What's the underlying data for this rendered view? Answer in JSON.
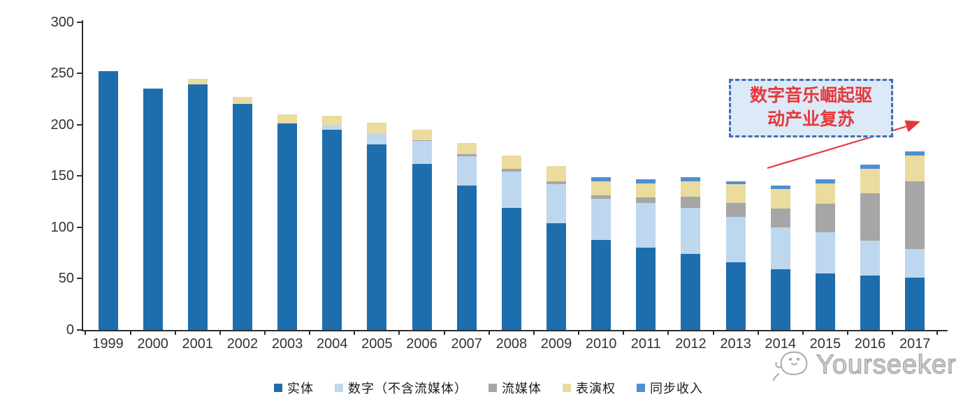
{
  "chart_data": {
    "type": "bar",
    "stacked": true,
    "title": "",
    "xlabel": "",
    "ylabel": "",
    "categories": [
      "1999",
      "2000",
      "2001",
      "2002",
      "2003",
      "2004",
      "2005",
      "2006",
      "2007",
      "2008",
      "2009",
      "2010",
      "2011",
      "2012",
      "2013",
      "2014",
      "2015",
      "2016",
      "2017"
    ],
    "series": [
      {
        "name": "实体",
        "color": "#1E6DAD",
        "values": [
          252,
          235,
          239,
          220,
          201,
          195,
          181,
          162,
          141,
          119,
          104,
          88,
          80,
          74,
          66,
          59,
          55,
          53,
          51
        ]
      },
      {
        "name": "数字（不含流媒体）",
        "color": "#BDD7EE",
        "values": [
          0,
          0,
          0,
          0,
          0,
          4,
          11,
          22,
          28,
          35,
          38,
          40,
          44,
          45,
          44,
          41,
          40,
          34,
          28
        ]
      },
      {
        "name": "流媒体",
        "color": "#A6A6A6",
        "values": [
          0,
          0,
          0,
          0,
          0,
          0,
          0,
          1,
          2,
          3,
          3,
          3,
          5,
          11,
          14,
          18,
          28,
          46,
          66
        ]
      },
      {
        "name": "表演权",
        "color": "#EADB9E",
        "values": [
          0,
          0,
          6,
          7,
          9,
          10,
          10,
          10,
          11,
          13,
          15,
          14,
          14,
          15,
          18,
          19,
          20,
          24,
          25
        ]
      },
      {
        "name": "同步收入",
        "color": "#4E90D1",
        "values": [
          0,
          0,
          0,
          0,
          0,
          0,
          0,
          0,
          0,
          0,
          0,
          4,
          4,
          4,
          3,
          4,
          4,
          4,
          4
        ]
      }
    ],
    "ylim": [
      0,
      300
    ],
    "ytick_interval": 50,
    "yticks": [
      "0",
      "50",
      "100",
      "150",
      "200",
      "250",
      "300"
    ],
    "grid": false,
    "legend_position": "bottom"
  },
  "annotation": {
    "line1": "数字音乐崛起驱",
    "line2": "动产业复苏",
    "text_color": "#E5383B",
    "box_fill": "#DCE9F6",
    "box_border": "#3F6CB5",
    "arrow_color": "#E5383B"
  },
  "watermark": {
    "text": "Yourseeker"
  }
}
